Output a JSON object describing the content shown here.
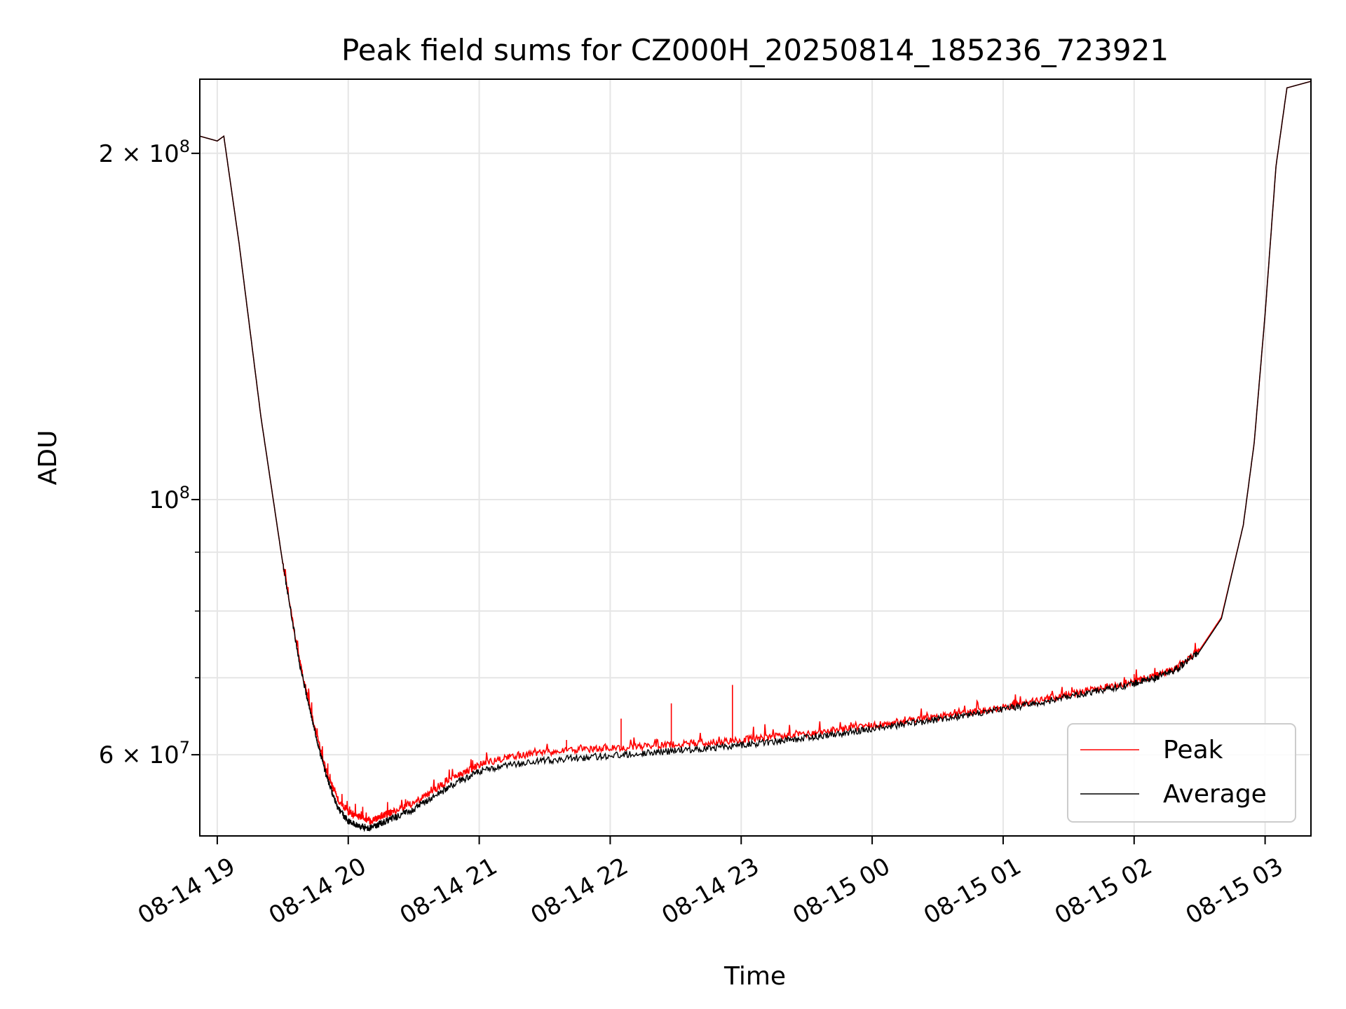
{
  "chart_data": {
    "type": "line",
    "title": "Peak field sums for CZ000H_20250814_185236_723921",
    "xlabel": "Time",
    "ylabel": "ADU",
    "yscale": "log",
    "xlim": [
      "2025-08-14 18:52",
      "2025-08-15 03:21"
    ],
    "ylim": [
      51000000,
      232000000
    ],
    "grid": true,
    "legend_position": "lower-right",
    "x_ticks": [
      "08-14 19",
      "08-14 20",
      "08-14 21",
      "08-14 22",
      "08-14 23",
      "08-15 00",
      "08-15 01",
      "08-15 02",
      "08-15 03"
    ],
    "y_ticks": [
      {
        "value": 60000000,
        "label_mantissa": "6",
        "label_base": "10",
        "label_exp": "7"
      },
      {
        "value": 100000000,
        "label_mantissa": "",
        "label_base": "10",
        "label_exp": "8"
      },
      {
        "value": 200000000,
        "label_mantissa": "2",
        "label_base": "10",
        "label_exp": "8"
      }
    ],
    "series": [
      {
        "name": "Peak",
        "color": "#ff0000",
        "x": [
          "2025-08-14 18:52",
          "2025-08-14 19:00",
          "2025-08-14 19:03",
          "2025-08-14 19:10",
          "2025-08-14 19:20",
          "2025-08-14 19:30",
          "2025-08-14 19:38",
          "2025-08-14 19:45",
          "2025-08-14 19:50",
          "2025-08-14 19:55",
          "2025-08-14 20:00",
          "2025-08-14 20:05",
          "2025-08-14 20:10",
          "2025-08-14 20:15",
          "2025-08-14 20:20",
          "2025-08-14 20:30",
          "2025-08-14 20:40",
          "2025-08-14 20:50",
          "2025-08-14 21:00",
          "2025-08-14 21:15",
          "2025-08-14 21:30",
          "2025-08-14 21:45",
          "2025-08-14 22:00",
          "2025-08-14 22:15",
          "2025-08-14 22:30",
          "2025-08-14 22:45",
          "2025-08-14 23:00",
          "2025-08-14 23:15",
          "2025-08-14 23:30",
          "2025-08-14 23:45",
          "2025-08-15 00:00",
          "2025-08-15 00:15",
          "2025-08-15 00:30",
          "2025-08-15 00:45",
          "2025-08-15 01:00",
          "2025-08-15 01:15",
          "2025-08-15 01:30",
          "2025-08-15 01:45",
          "2025-08-15 02:00",
          "2025-08-15 02:10",
          "2025-08-15 02:20",
          "2025-08-15 02:30",
          "2025-08-15 02:40",
          "2025-08-15 02:50",
          "2025-08-15 02:55",
          "2025-08-15 03:00",
          "2025-08-15 03:05",
          "2025-08-15 03:10",
          "2025-08-15 03:21"
        ],
        "values": [
          207000000,
          205000000,
          207000000,
          167000000,
          118000000,
          88000000,
          72000000,
          63000000,
          58000000,
          55000000,
          53500000,
          53000000,
          52500000,
          53000000,
          53500000,
          54500000,
          56000000,
          57500000,
          58800000,
          59800000,
          60300000,
          60600000,
          60800000,
          61000000,
          61300000,
          61500000,
          61800000,
          62200000,
          62600000,
          63100000,
          63600000,
          64200000,
          64700000,
          65300000,
          66000000,
          66800000,
          67700000,
          68600000,
          69500000,
          70300000,
          71500000,
          74000000,
          79000000,
          95000000,
          112000000,
          145000000,
          195000000,
          228000000,
          231000000
        ]
      },
      {
        "name": "Average",
        "color": "#000000",
        "x": [
          "2025-08-14 18:52",
          "2025-08-14 19:00",
          "2025-08-14 19:03",
          "2025-08-14 19:10",
          "2025-08-14 19:20",
          "2025-08-14 19:30",
          "2025-08-14 19:38",
          "2025-08-14 19:45",
          "2025-08-14 19:50",
          "2025-08-14 19:55",
          "2025-08-14 20:00",
          "2025-08-14 20:05",
          "2025-08-14 20:10",
          "2025-08-14 20:15",
          "2025-08-14 20:20",
          "2025-08-14 20:30",
          "2025-08-14 20:40",
          "2025-08-14 20:50",
          "2025-08-14 21:00",
          "2025-08-14 21:15",
          "2025-08-14 21:30",
          "2025-08-14 21:45",
          "2025-08-14 22:00",
          "2025-08-14 22:15",
          "2025-08-14 22:30",
          "2025-08-14 22:45",
          "2025-08-14 23:00",
          "2025-08-14 23:15",
          "2025-08-14 23:30",
          "2025-08-14 23:45",
          "2025-08-15 00:00",
          "2025-08-15 00:15",
          "2025-08-15 00:30",
          "2025-08-15 00:45",
          "2025-08-15 01:00",
          "2025-08-15 01:15",
          "2025-08-15 01:30",
          "2025-08-15 01:45",
          "2025-08-15 02:00",
          "2025-08-15 02:10",
          "2025-08-15 02:20",
          "2025-08-15 02:30",
          "2025-08-15 02:40",
          "2025-08-15 02:50",
          "2025-08-15 02:55",
          "2025-08-15 03:00",
          "2025-08-15 03:05",
          "2025-08-15 03:10",
          "2025-08-15 03:21"
        ],
        "values": [
          207000000,
          205000000,
          207000000,
          167000000,
          118000000,
          88000000,
          71500000,
          62500000,
          57500000,
          54000000,
          52500000,
          52000000,
          51800000,
          52300000,
          52800000,
          53800000,
          55300000,
          56800000,
          58000000,
          58800000,
          59300000,
          59600000,
          59900000,
          60200000,
          60500000,
          60800000,
          61200000,
          61600000,
          62100000,
          62600000,
          63200000,
          63800000,
          64400000,
          65000000,
          65700000,
          66500000,
          67400000,
          68300000,
          69200000,
          70000000,
          71300000,
          73800000,
          78800000,
          95000000,
          112000000,
          145000000,
          195000000,
          228000000,
          231000000
        ]
      }
    ],
    "spikes": [
      {
        "series": "Peak",
        "x": "2025-08-14 22:28",
        "value": 66500000
      },
      {
        "series": "Peak",
        "x": "2025-08-14 22:56",
        "value": 69000000
      },
      {
        "series": "Peak",
        "x": "2025-08-14 22:05",
        "value": 64500000
      },
      {
        "series": "Peak",
        "x": "2025-08-15 00:40",
        "value": 65500000
      },
      {
        "series": "Peak",
        "x": "2025-08-15 01:05",
        "value": 67000000
      },
      {
        "series": "Peak",
        "x": "2025-08-15 02:00",
        "value": 70500000
      },
      {
        "series": "Peak",
        "x": "2025-08-14 21:40",
        "value": 61800000
      }
    ]
  }
}
